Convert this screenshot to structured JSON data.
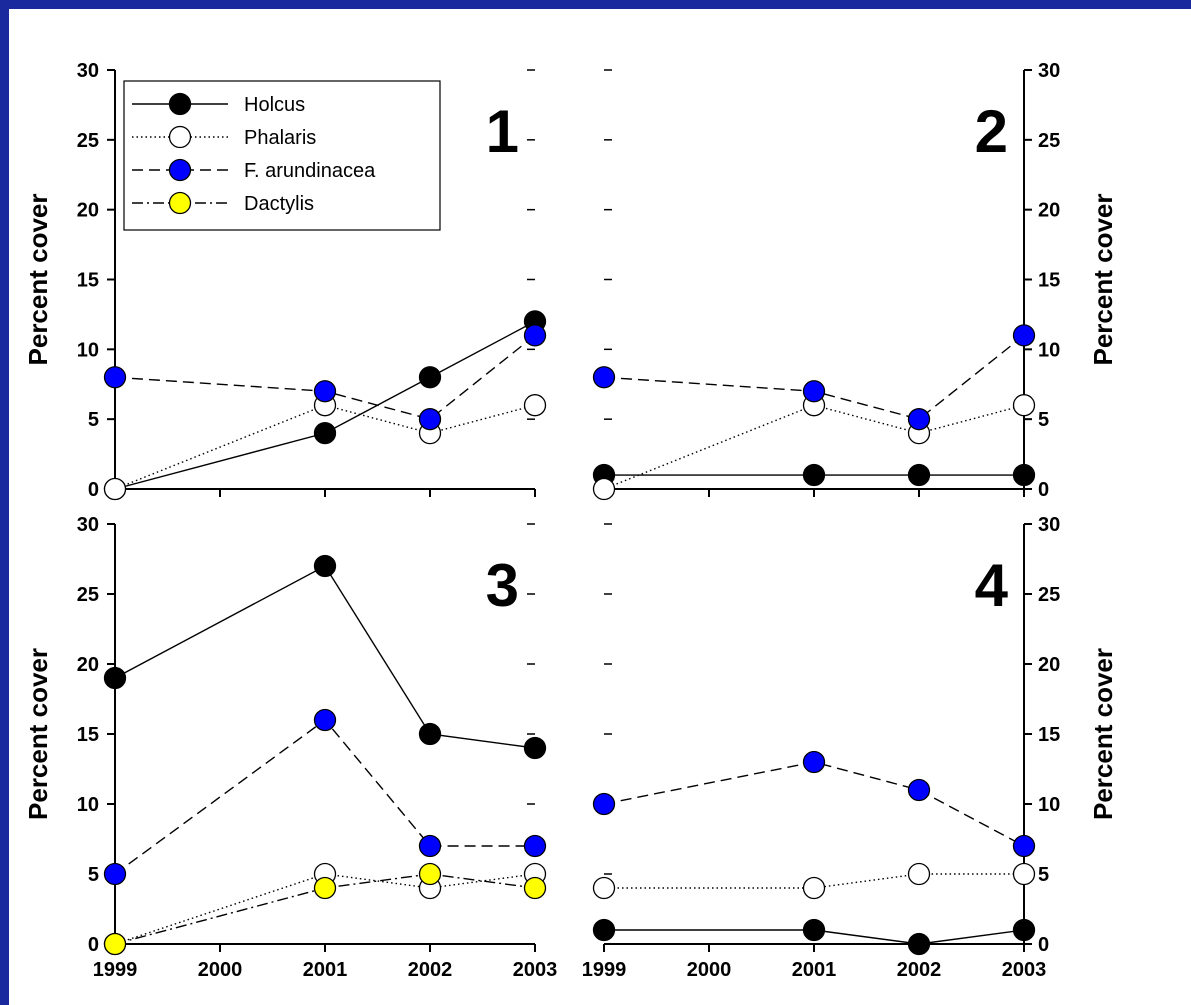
{
  "chart_data": [
    {
      "type": "line",
      "panel_label": "1",
      "ylabel": "Percent cover",
      "x_ticks": [
        "1999",
        "2000",
        "2001",
        "2002",
        "2003"
      ],
      "xlim": [
        1999,
        2003
      ],
      "ylim": [
        0,
        30
      ],
      "y_ticks": [
        0,
        5,
        10,
        15,
        20,
        25,
        30
      ],
      "x_tick_labels_shown": false,
      "y_axis_side": "left",
      "legend": {
        "placement": "top-left",
        "entries": [
          "Holcus",
          "Phalaris",
          "F. arundinacea",
          "Dactylis"
        ]
      },
      "series": [
        {
          "name": "Holcus",
          "x": [
            1999,
            2001,
            2002,
            2003
          ],
          "values": [
            0,
            4,
            8,
            12
          ]
        },
        {
          "name": "Phalaris",
          "x": [
            1999,
            2001,
            2002,
            2003
          ],
          "values": [
            0,
            6,
            4,
            6
          ]
        },
        {
          "name": "F. arundinacea",
          "x": [
            1999,
            2001,
            2002,
            2003
          ],
          "values": [
            8,
            7,
            5,
            11
          ]
        }
      ]
    },
    {
      "type": "line",
      "panel_label": "2",
      "ylabel": "Percent cover",
      "x_ticks": [
        "1999",
        "2000",
        "2001",
        "2002",
        "2003"
      ],
      "xlim": [
        1999,
        2003
      ],
      "ylim": [
        0,
        30
      ],
      "y_ticks": [
        0,
        5,
        10,
        15,
        20,
        25,
        30
      ],
      "x_tick_labels_shown": false,
      "y_axis_side": "right",
      "series": [
        {
          "name": "Holcus",
          "x": [
            1999,
            2001,
            2002,
            2003
          ],
          "values": [
            1,
            1,
            1,
            1
          ]
        },
        {
          "name": "Phalaris",
          "x": [
            1999,
            2001,
            2002,
            2003
          ],
          "values": [
            0,
            6,
            4,
            6
          ]
        },
        {
          "name": "F. arundinacea",
          "x": [
            1999,
            2001,
            2002,
            2003
          ],
          "values": [
            8,
            7,
            5,
            11
          ]
        }
      ]
    },
    {
      "type": "line",
      "panel_label": "3",
      "ylabel": "Percent cover",
      "x_ticks": [
        "1999",
        "2000",
        "2001",
        "2002",
        "2003"
      ],
      "xlim": [
        1999,
        2003
      ],
      "ylim": [
        0,
        30
      ],
      "y_ticks": [
        0,
        5,
        10,
        15,
        20,
        25,
        30
      ],
      "x_tick_labels_shown": true,
      "y_axis_side": "left",
      "series": [
        {
          "name": "Holcus",
          "x": [
            1999,
            2001,
            2002,
            2003
          ],
          "values": [
            19,
            27,
            15,
            14
          ]
        },
        {
          "name": "Phalaris",
          "x": [
            1999,
            2001,
            2002,
            2003
          ],
          "values": [
            0,
            5,
            4,
            5
          ]
        },
        {
          "name": "F. arundinacea",
          "x": [
            1999,
            2001,
            2002,
            2003
          ],
          "values": [
            5,
            16,
            7,
            7
          ]
        },
        {
          "name": "Dactylis",
          "x": [
            1999,
            2001,
            2002,
            2003
          ],
          "values": [
            0,
            4,
            5,
            4
          ]
        }
      ]
    },
    {
      "type": "line",
      "panel_label": "4",
      "ylabel": "Percent cover",
      "x_ticks": [
        "1999",
        "2000",
        "2001",
        "2002",
        "2003"
      ],
      "xlim": [
        1999,
        2003
      ],
      "ylim": [
        0,
        30
      ],
      "y_ticks": [
        0,
        5,
        10,
        15,
        20,
        25,
        30
      ],
      "x_tick_labels_shown": true,
      "y_axis_side": "right",
      "series": [
        {
          "name": "Holcus",
          "x": [
            1999,
            2001,
            2002,
            2003
          ],
          "values": [
            1,
            1,
            0,
            1
          ]
        },
        {
          "name": "Phalaris",
          "x": [
            1999,
            2001,
            2002,
            2003
          ],
          "values": [
            4,
            4,
            5,
            5
          ]
        },
        {
          "name": "F. arundinacea",
          "x": [
            1999,
            2001,
            2002,
            2003
          ],
          "values": [
            10,
            13,
            11,
            7
          ]
        }
      ]
    }
  ],
  "series_styles": {
    "Holcus": {
      "fill": "#000000",
      "dash": "solid"
    },
    "Phalaris": {
      "fill": "#ffffff",
      "dash": "dotted"
    },
    "F. arundinacea": {
      "fill": "#0000ff",
      "dash": "dashed"
    },
    "Dactylis": {
      "fill": "#ffff00",
      "dash": "dash-dot"
    }
  },
  "colors": {
    "frame_border": "#1a2a9e",
    "axis": "#000000",
    "background": "#ffffff"
  }
}
